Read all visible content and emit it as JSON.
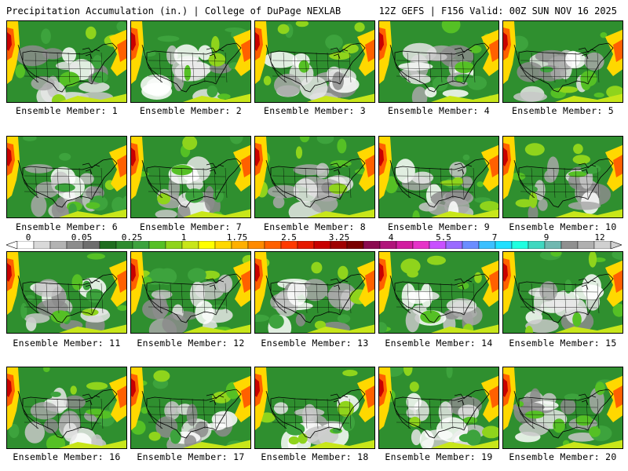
{
  "header": {
    "title": "Precipitation Accumulation (in.) | College of DuPage NEXLAB",
    "run_info": "12Z GEFS | F156 Valid: 00Z SUN NOV 16 2025"
  },
  "colorbar": {
    "labels": [
      "0",
      "0.05",
      "0.25",
      "1",
      "1.75",
      "2.5",
      "3.25",
      "4",
      "5.5",
      "7",
      "9",
      "12"
    ],
    "colors": [
      "#ffffff",
      "#d9d9d9",
      "#b3b3b3",
      "#8c8c8c",
      "#6e6e6e",
      "#1f6e1f",
      "#2e8b2e",
      "#3da33d",
      "#55c025",
      "#8fd41c",
      "#c8e61a",
      "#ffff00",
      "#ffd800",
      "#ffb000",
      "#ff8a00",
      "#ff6000",
      "#ff3a00",
      "#e61a00",
      "#c80000",
      "#a00000",
      "#7a0000",
      "#8b0a50",
      "#b0147a",
      "#d21ea0",
      "#e632c8",
      "#c850ff",
      "#9a6bff",
      "#6b8dff",
      "#3cc0ff",
      "#20e0ff",
      "#20ffe0",
      "#40d8c0",
      "#70b8b0",
      "#909090",
      "#b0b0b0",
      "#d0d0d0"
    ]
  },
  "members": [
    {
      "label": "Ensemble Member: 1"
    },
    {
      "label": "Ensemble Member: 2"
    },
    {
      "label": "Ensemble Member: 3"
    },
    {
      "label": "Ensemble Member: 4"
    },
    {
      "label": "Ensemble Member: 5"
    },
    {
      "label": "Ensemble Member: 6"
    },
    {
      "label": "Ensemble Member: 7"
    },
    {
      "label": "Ensemble Member: 8"
    },
    {
      "label": "Ensemble Member: 9"
    },
    {
      "label": "Ensemble Member: 10"
    },
    {
      "label": "Ensemble Member: 11"
    },
    {
      "label": "Ensemble Member: 12"
    },
    {
      "label": "Ensemble Member: 13"
    },
    {
      "label": "Ensemble Member: 14"
    },
    {
      "label": "Ensemble Member: 15"
    },
    {
      "label": "Ensemble Member: 16"
    },
    {
      "label": "Ensemble Member: 17"
    },
    {
      "label": "Ensemble Member: 18"
    },
    {
      "label": "Ensemble Member: 19"
    },
    {
      "label": "Ensemble Member: 20"
    }
  ]
}
